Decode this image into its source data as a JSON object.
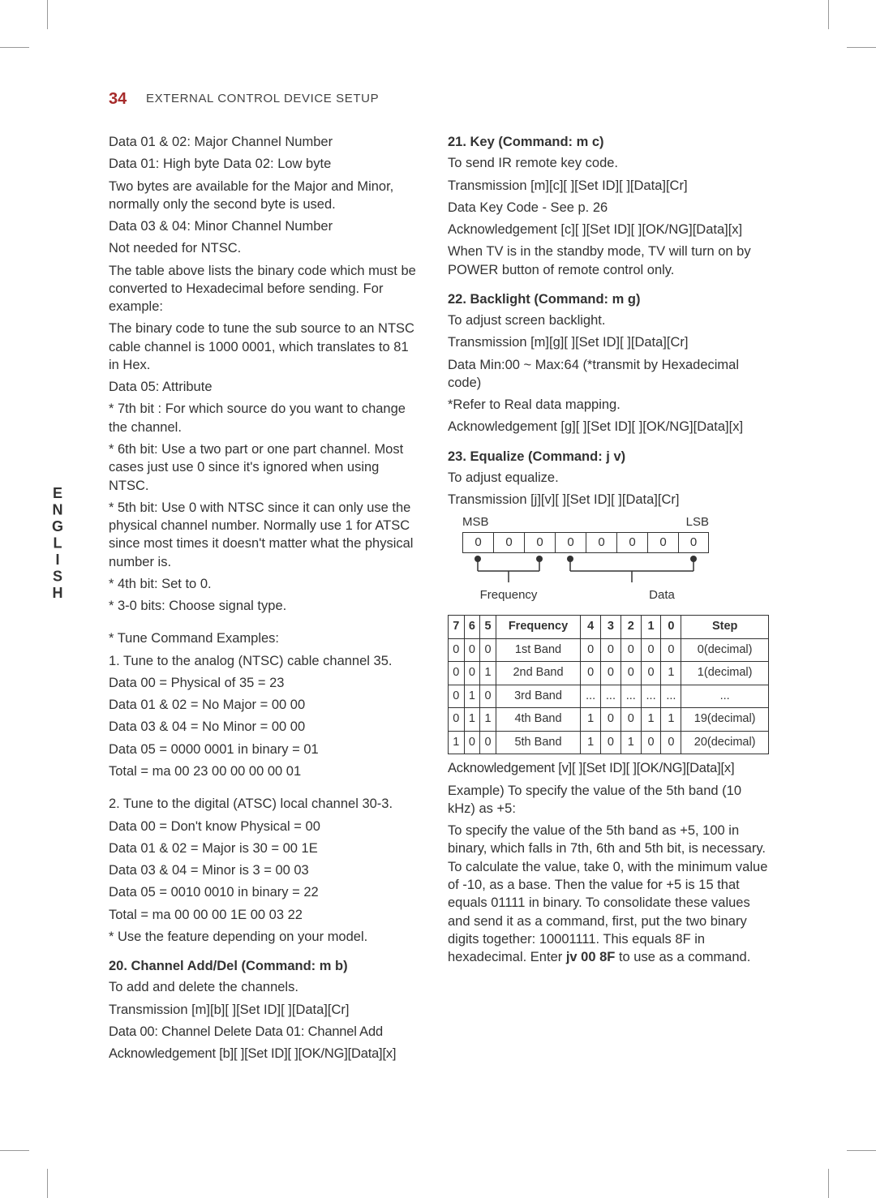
{
  "page_number": "34",
  "section_title": "EXTERNAL CONTROL DEVICE SETUP",
  "side_tab": "ENGLISH",
  "left": {
    "p1": "Data 01 & 02: Major Channel Number",
    "p2": "Data 01: High byte   Data 02: Low byte",
    "p3": "Two bytes are available for the Major and Minor, normally only the second byte is used.",
    "p4": "Data 03 & 04: Minor Channel Number",
    "p5": "Not needed for NTSC.",
    "p6": "The table above lists the binary code which must be converted to Hexadecimal before sending. For example:",
    "p7": "The binary code to tune the sub source to an NTSC cable channel is 1000 0001, which translates to 81 in Hex.",
    "p8": "Data 05: Attribute",
    "p9": "* 7th bit : For which source do you want to change the channel.",
    "p10": "* 6th bit: Use a two part or one part channel. Most cases just use 0 since it's ignored when using NTSC.",
    "p11": "* 5th bit: Use 0 with NTSC since it can only use the physical channel number. Normally use 1 for ATSC since most times it doesn't matter what the physical number is.",
    "p12": "* 4th bit: Set to 0.",
    "p13": "* 3-0 bits: Choose signal type.",
    "p14": "* Tune Command Examples:",
    "p15": "1. Tune to the analog (NTSC) cable channel 35.",
    "p16": "Data 00 = Physical of 35 = 23",
    "p17": "Data 01 & 02 = No Major = 00 00",
    "p18": "Data 03 & 04 = No Minor = 00 00",
    "p19": "Data 05 = 0000 0001 in binary = 01",
    "p20": "Total = ma 00 23 00 00 00 00 01",
    "p21": "2. Tune to the digital (ATSC) local channel 30-3.",
    "p22": "Data 00 = Don't know Physical = 00",
    "p23": "Data 01 & 02 = Major is 30 = 00 1E",
    "p24": "Data 03 & 04 = Minor is 3 = 00 03",
    "p25": "Data 05 = 0010 0010 in binary = 22",
    "p26": "Total = ma 00 00 00 1E 00 03 22",
    "p27": "* Use the feature depending on your model.",
    "h20": "20. Channel Add/Del (Command: m b)",
    "p28": "To add and delete the channels.",
    "p29": "Transmission [m][b][ ][Set ID][ ][Data][Cr]",
    "p30": "Data 00: Channel Delete Data 01: Channel Add",
    "p31": "Acknowledgement [b][ ][Set ID][ ][OK/NG][Data][x]"
  },
  "right": {
    "h21": "21. Key (Command: m c)",
    "p1": "To send IR remote key code.",
    "p2": "Transmission [m][c][ ][Set ID][ ][Data][Cr]",
    "p3": "Data Key Code -  See p. 26",
    "p4": "Acknowledgement [c][ ][Set ID][ ][OK/NG][Data][x]",
    "p5": "When TV is in the standby mode, TV will turn on by POWER button of remote control only.",
    "h22": "22. Backlight (Command: m g)",
    "p6": "To adjust screen backlight.",
    "p7": "Transmission [m][g][ ][Set ID][ ][Data][Cr]",
    "p8": "Data Min:00 ~ Max:64 (*transmit by Hexadecimal code)",
    "p9": "*Refer to Real data mapping.",
    "p10": "Acknowledgement [g][ ][Set ID][ ][OK/NG][Data][x]",
    "h23": "23. Equalize (Command: j v)",
    "p11": "To adjust equalize.",
    "p12": "Transmission [j][v][ ][Set ID][ ][Data][Cr]",
    "msb": "MSB",
    "lsb": "LSB",
    "bits": [
      "0",
      "0",
      "0",
      "0",
      "0",
      "0",
      "0",
      "0"
    ],
    "freq_label": "Frequency",
    "data_label": "Data",
    "eq_table": {
      "headers": [
        "7",
        "6",
        "5",
        "Frequency",
        "4",
        "3",
        "2",
        "1",
        "0",
        "Step"
      ],
      "rows": [
        [
          "0",
          "0",
          "0",
          "1st Band",
          "0",
          "0",
          "0",
          "0",
          "0",
          "0(decimal)"
        ],
        [
          "0",
          "0",
          "1",
          "2nd Band",
          "0",
          "0",
          "0",
          "0",
          "1",
          "1(decimal)"
        ],
        [
          "0",
          "1",
          "0",
          "3rd Band",
          "...",
          "...",
          "...",
          "...",
          "...",
          "..."
        ],
        [
          "0",
          "1",
          "1",
          "4th Band",
          "1",
          "0",
          "0",
          "1",
          "1",
          "19(decimal)"
        ],
        [
          "1",
          "0",
          "0",
          "5th Band",
          "1",
          "0",
          "1",
          "0",
          "0",
          "20(decimal)"
        ]
      ]
    },
    "p13": "Acknowledgement [v][ ][Set ID][ ][OK/NG][Data][x]",
    "p14": "Example) To specify the value of the 5th band (10 kHz) as +5:",
    "p15a": "To specify the value of the 5th band as +5, 100 in binary, which falls in 7th, 6th and 5th bit, is necessary. To calculate the value, take 0, with the minimum value of -10, as a base. Then the value for +5 is 15 that equals 01111 in binary. To consolidate these values and send it as a command, first, put the two binary digits together: 10001111. This equals 8F in hexadecimal. Enter ",
    "p15b": "jv 00 8F",
    "p15c": " to use as a command."
  },
  "colors": {
    "page_num": "#a62a2a",
    "text": "#333333",
    "crop": "#999999",
    "border": "#333333",
    "bg": "#ffffff"
  }
}
